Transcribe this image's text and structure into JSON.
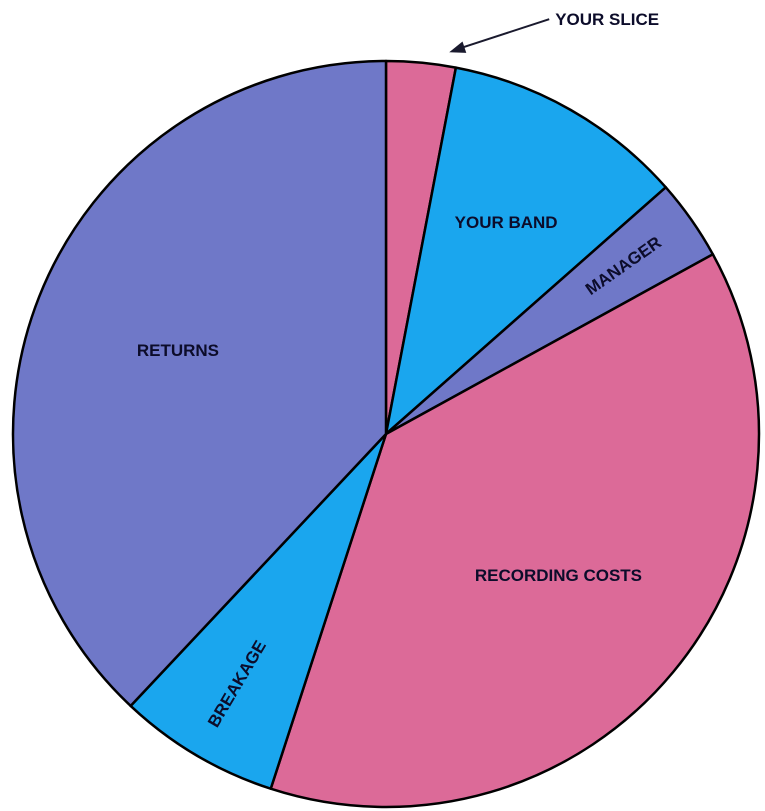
{
  "chart_data": {
    "type": "pie",
    "title": "",
    "start_angle_deg": 0,
    "direction": "clockwise",
    "slices": [
      {
        "label": "YOUR SLICE",
        "value": 3,
        "color": "#dc6a98",
        "label_style": "callout"
      },
      {
        "label": "YOUR BAND",
        "value": 10.5,
        "color": "#1aa6ee",
        "label_style": "horizontal"
      },
      {
        "label": "MANAGER",
        "value": 3.5,
        "color": "#6f78c8",
        "label_style": "radial"
      },
      {
        "label": "RECORDING COSTS",
        "value": 38,
        "color": "#dc6a98",
        "label_style": "horizontal"
      },
      {
        "label": "BREAKAGE",
        "value": 7,
        "color": "#1aa6ee",
        "label_style": "radial"
      },
      {
        "label": "RETURNS",
        "value": 38,
        "color": "#6f78c8",
        "label_style": "horizontal"
      }
    ],
    "outline_color": "#000000"
  }
}
